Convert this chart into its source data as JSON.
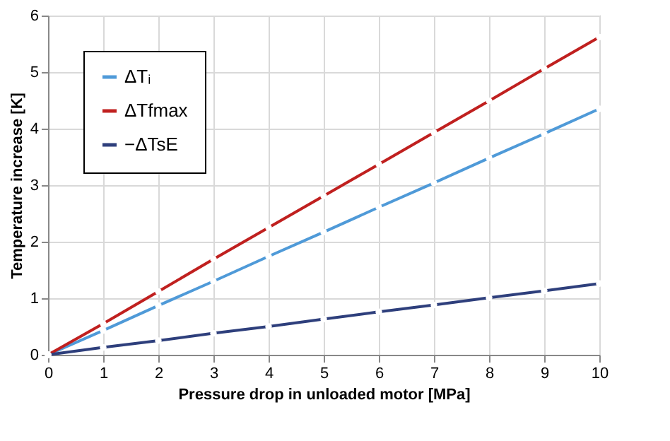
{
  "chart_data": {
    "type": "line",
    "xlabel": "Pressure drop in unloaded motor [MPa]",
    "ylabel": "Temperature increase [K]",
    "x": [
      0,
      1,
      2,
      3,
      4,
      5,
      6,
      7,
      8,
      9,
      10
    ],
    "series": [
      {
        "name": "ΔTᵢ",
        "color": "#4f9ad8",
        "values": [
          0,
          0.43,
          0.87,
          1.3,
          1.74,
          2.17,
          2.61,
          3.04,
          3.48,
          3.91,
          4.35
        ]
      },
      {
        "name": "ΔTfmax",
        "color": "#c0201f",
        "values": [
          0,
          0.55,
          1.12,
          1.69,
          2.25,
          2.81,
          3.37,
          3.93,
          4.49,
          5.06,
          5.62
        ]
      },
      {
        "name": "−ΔTsE",
        "color": "#2e3f7c",
        "values": [
          0,
          0.13,
          0.25,
          0.38,
          0.5,
          0.63,
          0.76,
          0.88,
          1.01,
          1.13,
          1.26
        ]
      }
    ],
    "xlim": [
      0,
      10
    ],
    "xticks": [
      0,
      1,
      2,
      3,
      4,
      5,
      6,
      7,
      8,
      9,
      10
    ],
    "ylim": [
      0,
      6
    ],
    "yticks": [
      0,
      1,
      2,
      3,
      4,
      5,
      6
    ],
    "grid": true,
    "legend": "top left",
    "marker": "circle",
    "line_style": "solid"
  }
}
